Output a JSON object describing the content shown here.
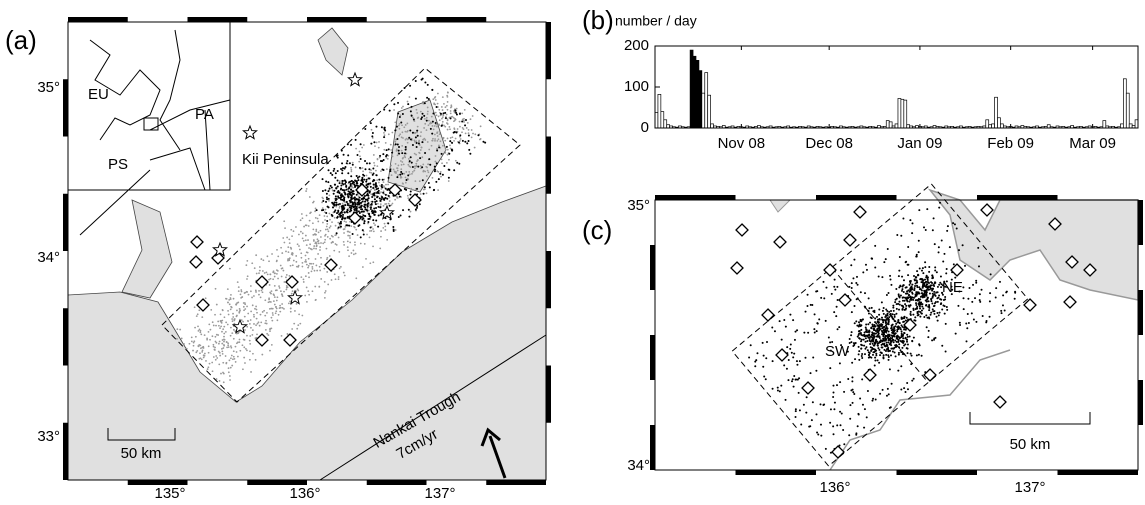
{
  "figure": {
    "panels": [
      {
        "label": "(a)",
        "lon_labels": [
          "135°",
          "136°",
          "137°"
        ],
        "lat_labels": [
          "35°",
          "34°",
          "33°"
        ],
        "annotations": [
          "EU",
          "PA",
          "PS",
          "Kii Peninsula",
          "Nankai Trough",
          "7cm/yr"
        ],
        "scale": "50 km"
      },
      {
        "label": "(c)",
        "lon_labels": [
          "136°",
          "137°"
        ],
        "lat_labels": [
          "35°",
          "34°"
        ],
        "annotations": [
          "NE",
          "SW"
        ],
        "scale": "50 km"
      }
    ]
  },
  "chart_data": {
    "type": "bar",
    "label": "(b)",
    "ylabel": "number / day",
    "categories": [
      null,
      null,
      null,
      null,
      null,
      null,
      null,
      null,
      null,
      null,
      null,
      null,
      null,
      null,
      null,
      null,
      null,
      null,
      null,
      null,
      null,
      null,
      null,
      null,
      null,
      null,
      null,
      null,
      null,
      "Nov 08",
      null,
      null,
      null,
      null,
      null,
      null,
      null,
      null,
      null,
      null,
      null,
      null,
      null,
      null,
      null,
      null,
      null,
      null,
      null,
      null,
      null,
      null,
      null,
      null,
      null,
      null,
      null,
      null,
      null,
      "Dec 08",
      null,
      null,
      null,
      null,
      null,
      null,
      null,
      null,
      null,
      null,
      null,
      null,
      null,
      null,
      null,
      null,
      null,
      null,
      null,
      null,
      null,
      null,
      null,
      null,
      null,
      null,
      null,
      null,
      null,
      null,
      "Jan 09",
      null,
      null,
      null,
      null,
      null,
      null,
      null,
      null,
      null,
      null,
      null,
      null,
      null,
      null,
      null,
      null,
      null,
      null,
      null,
      null,
      null,
      null,
      null,
      null,
      null,
      null,
      null,
      null,
      null,
      null,
      "Feb 09",
      null,
      null,
      null,
      null,
      null,
      null,
      null,
      null,
      null,
      null,
      null,
      null,
      null,
      null,
      null,
      null,
      null,
      null,
      null,
      null,
      null,
      null,
      null,
      null,
      null,
      null,
      null,
      "Mar 09",
      null,
      null,
      null,
      null,
      null,
      null,
      null,
      null,
      null,
      null,
      null,
      null,
      null,
      null,
      null
    ],
    "values": [
      38,
      82,
      40,
      20,
      8,
      5,
      3,
      2,
      5,
      3,
      2,
      3,
      190,
      175,
      165,
      140,
      85,
      135,
      80,
      10,
      5,
      4,
      3,
      6,
      2,
      3,
      5,
      2,
      4,
      3,
      2,
      5,
      3,
      2,
      4,
      6,
      3,
      2,
      3,
      5,
      2,
      3,
      4,
      2,
      3,
      5,
      2,
      3,
      2,
      4,
      3,
      2,
      5,
      3,
      2,
      4,
      3,
      2,
      3,
      2,
      4,
      3,
      2,
      5,
      3,
      2,
      3,
      4,
      2,
      3,
      5,
      3,
      2,
      4,
      3,
      2,
      6,
      3,
      4,
      18,
      15,
      5,
      10,
      72,
      70,
      68,
      8,
      5,
      3,
      6,
      4,
      3,
      5,
      2,
      3,
      6,
      4,
      3,
      2,
      5,
      3,
      4,
      2,
      3,
      5,
      2,
      3,
      4,
      2,
      3,
      4,
      3,
      5,
      20,
      8,
      10,
      75,
      25,
      10,
      5,
      3,
      4,
      2,
      5,
      3,
      6,
      4,
      3,
      2,
      3,
      5,
      2,
      3,
      4,
      8,
      3,
      2,
      5,
      3,
      4,
      2,
      3,
      6,
      2,
      3,
      4,
      2,
      3,
      5,
      3,
      4,
      2,
      3,
      18,
      5,
      3,
      4,
      2,
      3,
      10,
      120,
      85,
      10,
      6,
      20
    ],
    "colors": [
      "#fff",
      "#fff",
      "#fff",
      "#fff",
      "#fff",
      "#fff",
      "#fff",
      "#fff",
      "#fff",
      "#fff",
      "#fff",
      "#fff",
      "#000",
      "#000",
      "#000",
      "#000",
      "#fff",
      "#fff",
      "#fff",
      "#fff",
      "#fff",
      "#fff",
      "#fff",
      "#fff",
      "#fff",
      "#fff",
      "#fff",
      "#fff",
      "#fff",
      "#fff",
      "#fff",
      "#fff",
      "#fff",
      "#fff",
      "#fff",
      "#fff",
      "#fff",
      "#fff",
      "#fff",
      "#fff",
      "#fff",
      "#fff",
      "#fff",
      "#fff",
      "#fff",
      "#fff",
      "#fff",
      "#fff",
      "#fff",
      "#fff",
      "#fff",
      "#fff",
      "#fff",
      "#fff",
      "#fff",
      "#fff",
      "#fff",
      "#fff",
      "#fff",
      "#fff",
      "#fff",
      "#fff",
      "#fff",
      "#fff",
      "#fff",
      "#fff",
      "#fff",
      "#fff",
      "#fff",
      "#fff",
      "#fff",
      "#fff",
      "#fff",
      "#fff",
      "#fff",
      "#fff",
      "#fff",
      "#fff",
      "#fff",
      "#fff",
      "#fff",
      "#fff",
      "#fff",
      "#fff",
      "#fff",
      "#fff",
      "#fff",
      "#fff",
      "#fff",
      "#fff",
      "#fff",
      "#fff",
      "#fff",
      "#fff",
      "#fff",
      "#fff",
      "#fff",
      "#fff",
      "#fff",
      "#fff",
      "#fff",
      "#fff",
      "#fff",
      "#fff",
      "#fff",
      "#fff",
      "#fff",
      "#fff",
      "#fff",
      "#fff",
      "#fff",
      "#fff",
      "#fff",
      "#fff",
      "#fff",
      "#fff",
      "#fff",
      "#fff",
      "#fff",
      "#fff",
      "#fff",
      "#fff",
      "#fff",
      "#fff",
      "#fff",
      "#fff",
      "#fff",
      "#fff",
      "#fff",
      "#fff",
      "#fff",
      "#fff",
      "#fff",
      "#fff",
      "#fff",
      "#fff",
      "#fff",
      "#fff",
      "#fff",
      "#fff",
      "#fff",
      "#fff",
      "#fff",
      "#fff",
      "#fff",
      "#fff",
      "#fff",
      "#fff",
      "#fff",
      "#fff",
      "#fff",
      "#fff",
      "#fff",
      "#fff",
      "#fff",
      "#fff",
      "#fff",
      "#fff",
      "#fff",
      "#fff",
      "#fff",
      "#fff",
      "#fff",
      "#fff",
      "#fff",
      "#fff",
      "#fff"
    ],
    "ylim": [
      0,
      200
    ],
    "yticks": [
      0,
      100,
      200
    ]
  }
}
